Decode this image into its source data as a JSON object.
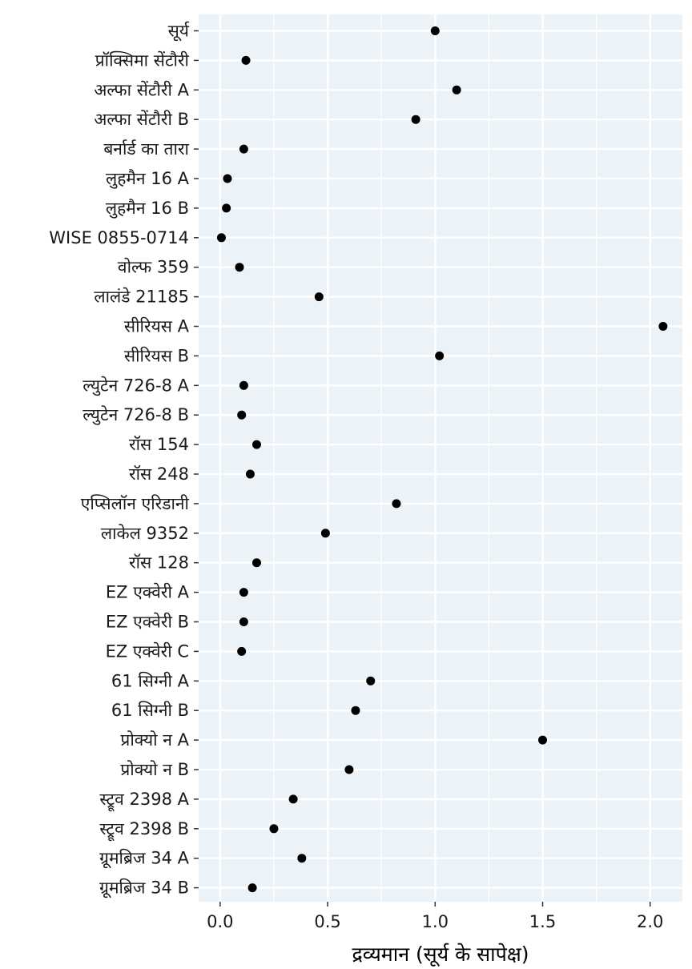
{
  "chart_data": {
    "type": "scatter",
    "orientation": "horizontal",
    "title": "",
    "xlabel": "द्रव्यमान (सूर्य के सापेक्ष)",
    "ylabel": "",
    "xlim": [
      -0.1,
      2.15
    ],
    "xticks": [
      0.0,
      0.5,
      1.0,
      1.5,
      2.0
    ],
    "xtick_labels": [
      "0.0",
      "0.5",
      "1.0",
      "1.5",
      "2.0"
    ],
    "grid": true,
    "legend": "none",
    "colors": {
      "panel": "#EBF3F9",
      "grid": "#FFFFFF",
      "point": "#000000"
    },
    "categories": [
      "सूर्य",
      "प्रॉक्सिमा सेंटौरी",
      "अल्फा सेंटौरी A",
      "अल्फा सेंटौरी B",
      "बर्नार्ड का तारा",
      "लुहमैन 16 A",
      "लुहमैन 16 B",
      "WISE 0855-0714",
      "वोल्फ 359",
      "लालंडे 21185",
      "सीरियस A",
      "सीरियस B",
      "ल्युटेन 726-8 A",
      "ल्युटेन 726-8 B",
      "रॉस 154",
      "रॉस 248",
      "एप्सिलॉन एरिडानी",
      "लाकेल 9352",
      "रॉस 128",
      "EZ एक्वेरी A",
      "EZ एक्वेरी B",
      "EZ एक्वेरी C",
      "61 सिग्नी A",
      "61 सिग्नी B",
      "प्रोक्यो न A",
      "प्रोक्यो न B",
      "स्ट्रूव 2398 A",
      "स्ट्रूव 2398 B",
      "ग्रूमब्रिज 34 A",
      "ग्रूमब्रिज 34 B"
    ],
    "values": [
      1.0,
      0.12,
      1.1,
      0.91,
      0.11,
      0.034,
      0.029,
      0.006,
      0.09,
      0.46,
      2.06,
      1.02,
      0.11,
      0.1,
      0.17,
      0.14,
      0.82,
      0.49,
      0.17,
      0.11,
      0.11,
      0.1,
      0.7,
      0.63,
      1.5,
      0.6,
      0.34,
      0.25,
      0.38,
      0.15
    ]
  }
}
